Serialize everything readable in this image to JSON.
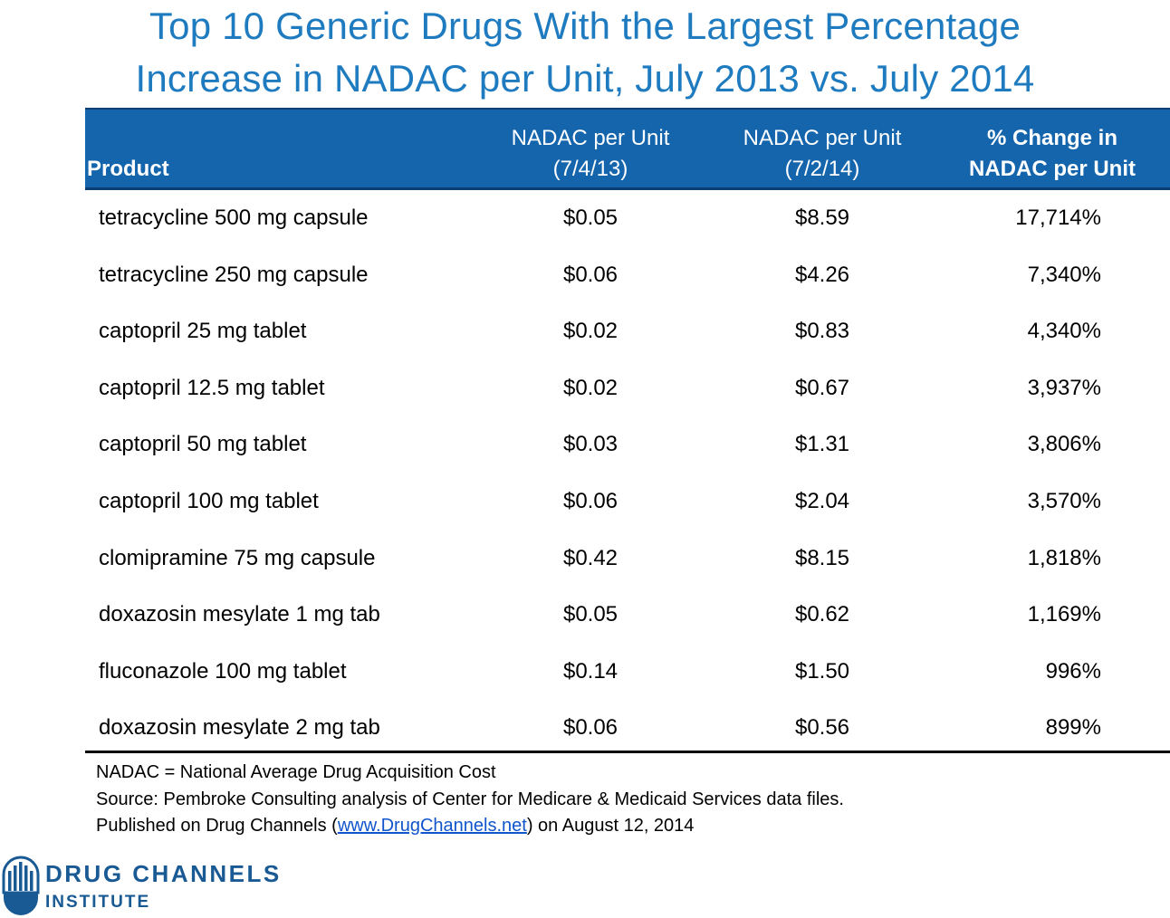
{
  "title": {
    "line1": "Top 10 Generic Drugs With the Largest Percentage",
    "line2": "Increase in NADAC per Unit, July 2013 vs. July 2014"
  },
  "table": {
    "headers": {
      "product": "Product",
      "col1_line1": "NADAC per Unit",
      "col1_line2": "(7/4/13)",
      "col2_line1": "NADAC per Unit",
      "col2_line2": "(7/2/14)",
      "col3_line1": "% Change in",
      "col3_line2": "NADAC per Unit"
    },
    "rows": [
      {
        "product": "tetracycline 500 mg capsule",
        "nadac_2013": "$0.05",
        "nadac_2014": "$8.59",
        "change": "17,714%"
      },
      {
        "product": "tetracycline 250 mg capsule",
        "nadac_2013": "$0.06",
        "nadac_2014": "$4.26",
        "change": "7,340%"
      },
      {
        "product": "captopril 25 mg tablet",
        "nadac_2013": "$0.02",
        "nadac_2014": "$0.83",
        "change": "4,340%"
      },
      {
        "product": "captopril 12.5 mg tablet",
        "nadac_2013": "$0.02",
        "nadac_2014": "$0.67",
        "change": "3,937%"
      },
      {
        "product": "captopril 50 mg tablet",
        "nadac_2013": "$0.03",
        "nadac_2014": "$1.31",
        "change": "3,806%"
      },
      {
        "product": "captopril 100 mg tablet",
        "nadac_2013": "$0.06",
        "nadac_2014": "$2.04",
        "change": "3,570%"
      },
      {
        "product": "clomipramine 75 mg capsule",
        "nadac_2013": "$0.42",
        "nadac_2014": "$8.15",
        "change": "1,818%"
      },
      {
        "product": "doxazosin mesylate 1 mg tab",
        "nadac_2013": "$0.05",
        "nadac_2014": "$0.62",
        "change": "1,169%"
      },
      {
        "product": "fluconazole 100 mg tablet",
        "nadac_2013": "$0.14",
        "nadac_2014": "$1.50",
        "change": "996%"
      },
      {
        "product": "doxazosin mesylate 2 mg tab",
        "nadac_2013": "$0.06",
        "nadac_2014": "$0.56",
        "change": "899%"
      }
    ]
  },
  "notes": {
    "definition": "NADAC = National Average Drug Acquisition Cost",
    "source": "Source: Pembroke Consulting analysis of Center for Medicare & Medicaid Services data files.",
    "published_prefix": "Published on Drug Channels (",
    "published_link": "www.DrugChannels.net",
    "published_suffix": ") on August 12, 2014"
  },
  "logo": {
    "line1": "DRUG CHANNELS",
    "line2": "INSTITUTE",
    "icon": "pill-capsule-icon",
    "color": "#1a5a94"
  },
  "colors": {
    "title": "#1f7bbf",
    "header_bg": "#1565ad",
    "link": "#1155cc"
  }
}
